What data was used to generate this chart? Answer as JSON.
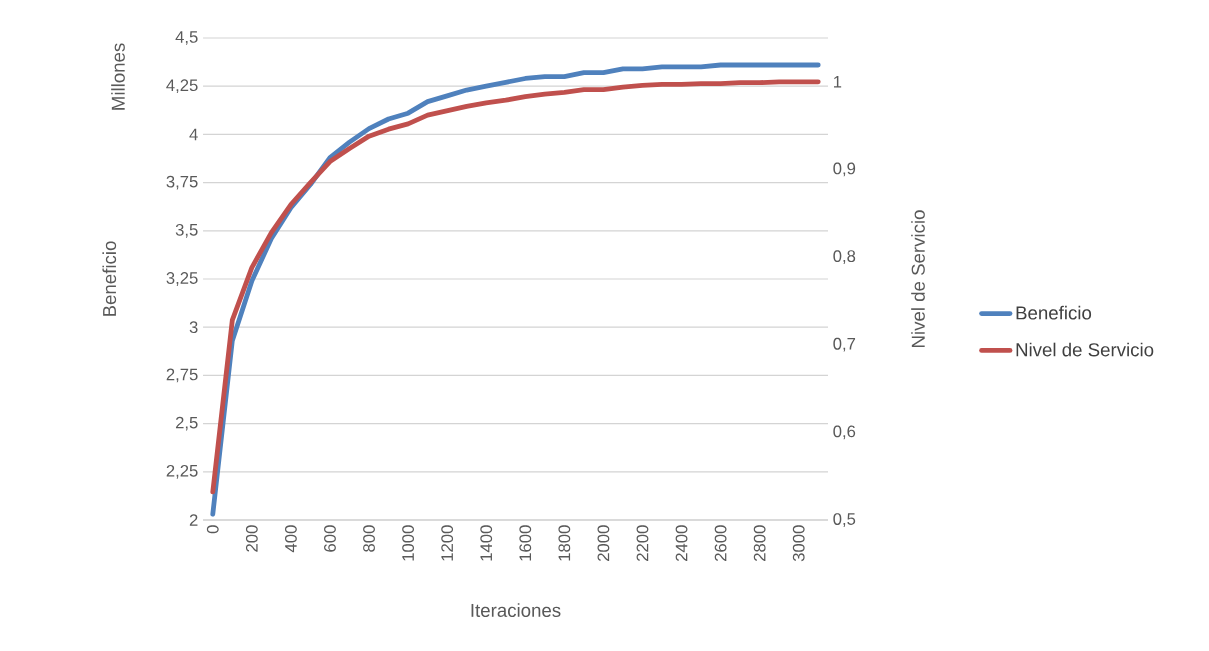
{
  "chart_data": {
    "type": "line",
    "xlabel": "Iteraciones",
    "ylabel": "Beneficio",
    "y2label": "Nivel de Servicio",
    "annotations": [
      "Millones"
    ],
    "x": [
      0,
      100,
      200,
      300,
      400,
      500,
      600,
      700,
      800,
      900,
      1000,
      1100,
      1200,
      1300,
      1400,
      1500,
      1600,
      1700,
      1800,
      1900,
      2000,
      2100,
      2200,
      2300,
      2400,
      2500,
      2600,
      2700,
      2800,
      2900,
      3000,
      3100
    ],
    "series": [
      {
        "name": "Beneficio",
        "color": "#4f81bd",
        "values": [
          2.03,
          2.93,
          3.24,
          3.46,
          3.62,
          3.74,
          3.88,
          3.96,
          4.03,
          4.08,
          4.11,
          4.17,
          4.2,
          4.23,
          4.25,
          4.27,
          4.29,
          4.3,
          4.3,
          4.32,
          4.32,
          4.34,
          4.34,
          4.35,
          4.35,
          4.35,
          4.36,
          4.36,
          4.36,
          4.36,
          4.36,
          4.36
        ]
      },
      {
        "name": "Nivel de Servicio",
        "color": "#c0504d",
        "axis": "y2",
        "values": [
          0.532,
          0.728,
          0.788,
          0.828,
          0.86,
          0.885,
          0.909,
          0.924,
          0.938,
          0.946,
          0.952,
          0.962,
          0.967,
          0.972,
          0.976,
          0.979,
          0.983,
          0.986,
          0.988,
          0.991,
          0.991,
          0.994,
          0.996,
          0.997,
          0.997,
          0.998,
          0.998,
          0.999,
          0.999,
          1.0,
          1.0,
          1.0
        ]
      }
    ],
    "xlim": [
      -50,
      3150
    ],
    "xticks": [
      0,
      200,
      400,
      600,
      800,
      1000,
      1200,
      1400,
      1600,
      1800,
      2000,
      2200,
      2400,
      2600,
      2800,
      3000
    ],
    "ylim": [
      2,
      4.5
    ],
    "yticks": [
      {
        "value": 2,
        "label": "2"
      },
      {
        "value": 2.25,
        "label": "2,25"
      },
      {
        "value": 2.5,
        "label": "2,5"
      },
      {
        "value": 2.75,
        "label": "2,75"
      },
      {
        "value": 3,
        "label": "3"
      },
      {
        "value": 3.25,
        "label": "3,25"
      },
      {
        "value": 3.5,
        "label": "3,5"
      },
      {
        "value": 3.75,
        "label": "3,75"
      },
      {
        "value": 4,
        "label": "4"
      },
      {
        "value": 4.25,
        "label": "4,25"
      },
      {
        "value": 4.5,
        "label": "4,5"
      }
    ],
    "y2lim": [
      0.5,
      1.05
    ],
    "y2ticks": [
      {
        "value": 0.5,
        "label": "0,5"
      },
      {
        "value": 0.6,
        "label": "0,6"
      },
      {
        "value": 0.7,
        "label": "0,7"
      },
      {
        "value": 0.8,
        "label": "0,8"
      },
      {
        "value": 0.9,
        "label": "0,9"
      },
      {
        "value": 1,
        "label": "1"
      }
    ],
    "grid": "y",
    "legend": "right",
    "marker": "none",
    "line_style": "solid"
  }
}
